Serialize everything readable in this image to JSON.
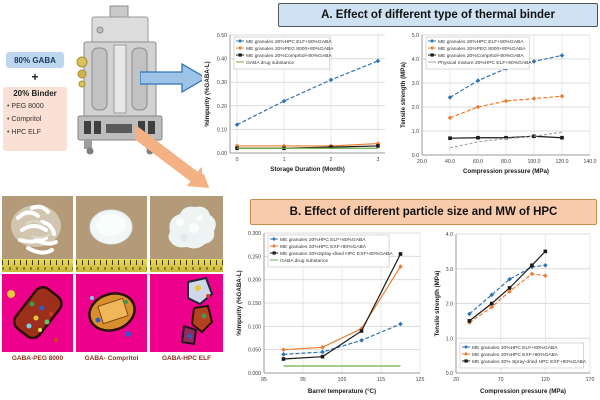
{
  "panel_a": {
    "title": "A. Effect of different type of thermal binder"
  },
  "panel_b": {
    "title": "B. Effect of different particle size and MW of HPC"
  },
  "formulation": {
    "gaba_label": "80% GABA",
    "plus": "+",
    "binder_label": "20% Binder",
    "binder_items": [
      "PEG 8000",
      "Compritol",
      "HPC ELF"
    ]
  },
  "photos": {
    "labels": [
      "GABA-PEG 8000",
      "GABA- Compritol",
      "GABA-HPC ELF"
    ]
  },
  "colors": {
    "series_blue": "#2e75b6",
    "series_orange": "#ed7d31",
    "series_black": "#1a1a1a",
    "series_gray": "#a6a6a6",
    "series_green": "#70ad47",
    "panel_a_bg": "#cfe2f3",
    "panel_b_bg": "#f8cbad",
    "gaba_box_bg": "#bdd7ee",
    "binder_box_bg": "#fbe0d5",
    "arrow_blue_fill": "#9dc3e6",
    "arrow_blue_stroke": "#2e74b5",
    "arrow_orange_fill": "#f4b183",
    "plm_bg": "#ec008c",
    "powder_bg": "#b39b79",
    "ruler_yellow": "#d6c44b"
  },
  "chart_data": [
    {
      "id": "chart-a-left",
      "type": "line",
      "xlabel": "Storage Duration (Month)",
      "ylabel": "%Impurity (%GABA-L)",
      "x": [
        0,
        1,
        2,
        3
      ],
      "xlim": [
        -0.15,
        3.15
      ],
      "xticks": [
        0,
        1,
        2,
        3
      ],
      "xtick_decimals": 0,
      "ylim": [
        0,
        0.5
      ],
      "yticks": [
        0,
        0.1,
        0.2,
        0.3,
        0.4,
        0.5
      ],
      "ytick_decimals": 2,
      "grid": true,
      "legend_pos": "tl",
      "margin": {
        "l": 28,
        "r": 7,
        "t": 5,
        "b": 21
      },
      "series": [
        {
          "name": "ME granules 20%HPC ELF+80%GABA",
          "color": "#2e75b6",
          "marker": "diamond",
          "dash": "4 2",
          "values": [
            0.12,
            0.22,
            0.31,
            0.39
          ]
        },
        {
          "name": "ME granules 20%PEG 8000+80%GABA",
          "color": "#ed7d31",
          "marker": "diamond",
          "dash": "",
          "values": [
            0.03,
            0.03,
            0.03,
            0.04
          ]
        },
        {
          "name": "ME granules 20%Compritol+80%GABA",
          "color": "#1a1a1a",
          "marker": "square",
          "dash": "",
          "values": [
            0.02,
            0.02,
            0.025,
            0.03
          ]
        },
        {
          "name": "GABA drug substance",
          "color": "#70ad47",
          "marker": "none",
          "dash": "",
          "values": [
            0.02,
            0.02,
            0.02,
            0.02
          ]
        }
      ]
    },
    {
      "id": "chart-a-right",
      "type": "line",
      "xlabel": "Compression pressure (MPa)",
      "ylabel": "Tensile strength (MPa)",
      "x": [
        40,
        60,
        80,
        100,
        120
      ],
      "xlim": [
        20,
        140
      ],
      "xticks": [
        20,
        40,
        60,
        80,
        100,
        120,
        140
      ],
      "xtick_decimals": 1,
      "ylim": [
        0,
        5
      ],
      "yticks": [
        0,
        1,
        2,
        3,
        4,
        5
      ],
      "ytick_decimals": 1,
      "grid": true,
      "legend_pos": "tl",
      "margin": {
        "l": 24,
        "r": 8,
        "t": 5,
        "b": 21
      },
      "series": [
        {
          "name": "ME granules 20%HPC ELF+80%GABA",
          "color": "#2e75b6",
          "marker": "diamond",
          "dash": "4 2",
          "values": [
            2.4,
            3.1,
            3.6,
            3.9,
            4.15
          ]
        },
        {
          "name": "ME granules 20%PEG 8000+80%GABA",
          "color": "#ed7d31",
          "marker": "diamond",
          "dash": "4 2",
          "values": [
            1.55,
            2.0,
            2.25,
            2.35,
            2.45
          ]
        },
        {
          "name": "ME granules 20%Compritol+80%GABA",
          "color": "#1a1a1a",
          "marker": "square",
          "dash": "",
          "values": [
            0.7,
            0.72,
            0.72,
            0.78,
            0.72
          ]
        },
        {
          "name": "Physical mixture 20%HPC ELF+80%GABA",
          "color": "#a6a6a6",
          "marker": "none",
          "dash": "3 2",
          "values": [
            0.3,
            0.55,
            0.68,
            0.78,
            0.95
          ]
        }
      ]
    },
    {
      "id": "chart-b-left",
      "type": "line",
      "xlabel": "Barrel temperature (°C)",
      "ylabel": "%Impurity (%GABA-L)",
      "x": [
        90,
        100,
        110,
        120
      ],
      "xlim": [
        85,
        125
      ],
      "xticks": [
        85,
        95,
        105,
        115,
        125
      ],
      "xtick_decimals": 0,
      "ylim": [
        0,
        0.3
      ],
      "yticks": [
        0,
        0.05,
        0.1,
        0.15,
        0.2,
        0.25,
        0.3
      ],
      "ytick_decimals": 3,
      "grid": true,
      "legend_pos": "tl",
      "margin": {
        "l": 30,
        "r": 8,
        "t": 5,
        "b": 23
      },
      "series": [
        {
          "name": "ME granules 20%HPC ELF+80%GABA",
          "color": "#2e75b6",
          "marker": "diamond",
          "dash": "4 2",
          "values": [
            0.04,
            0.045,
            0.07,
            0.105
          ]
        },
        {
          "name": "ME granules 20%HPC EXF+80%GABA",
          "color": "#ed7d31",
          "marker": "diamond",
          "dash": "",
          "values": [
            0.05,
            0.055,
            0.095,
            0.228
          ]
        },
        {
          "name": "ME granules 20%Spray-dried HPC EXF+80%GABA",
          "color": "#1a1a1a",
          "marker": "square",
          "dash": "",
          "values": [
            0.03,
            0.035,
            0.09,
            0.255
          ]
        },
        {
          "name": "GABA drug substance",
          "color": "#70ad47",
          "marker": "none",
          "dash": "",
          "values": [
            0.015,
            0.015,
            0.015,
            0.015
          ]
        }
      ]
    },
    {
      "id": "chart-b-right",
      "type": "line",
      "xlabel": "Compression pressure (MPa)",
      "ylabel": "Tensile strength (MPa)",
      "x": [
        35,
        60,
        80,
        105,
        120
      ],
      "xlim": [
        20,
        170
      ],
      "xticks": [
        20,
        70,
        120,
        170
      ],
      "xtick_decimals": 0,
      "ylim": [
        0,
        4
      ],
      "yticks": [
        0,
        1,
        2,
        3,
        4
      ],
      "ytick_decimals": 1,
      "grid": true,
      "legend_pos": "bl",
      "margin": {
        "l": 24,
        "r": 8,
        "t": 6,
        "b": 23
      },
      "series": [
        {
          "name": "ME granules 20%HPC ELF+80%GABA",
          "color": "#2e75b6",
          "marker": "diamond",
          "dash": "4 2",
          "values": [
            1.7,
            2.25,
            2.7,
            3.05,
            3.1
          ]
        },
        {
          "name": "ME granules 20%HPC EXF+80%GABA",
          "color": "#ed7d31",
          "marker": "diamond",
          "dash": "4 2",
          "values": [
            1.45,
            1.9,
            2.35,
            2.85,
            2.8
          ]
        },
        {
          "name": "ME granules 20% Spray-dried HPC EXF+80%GABA",
          "color": "#1a1a1a",
          "marker": "square",
          "dash": "",
          "values": [
            1.5,
            2.0,
            2.45,
            3.1,
            3.5
          ]
        }
      ]
    }
  ]
}
